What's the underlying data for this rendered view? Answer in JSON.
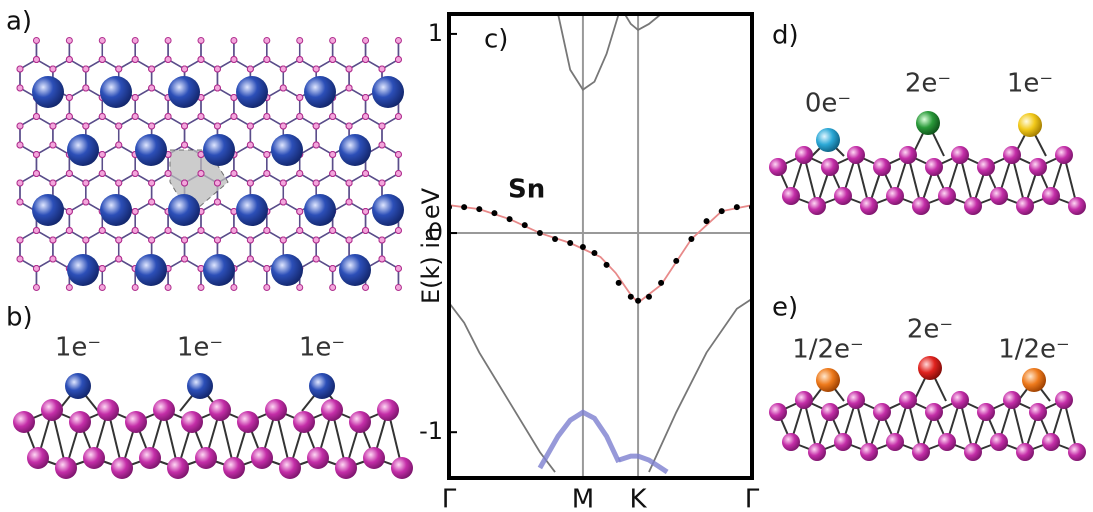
{
  "chart_data": {
    "type": "line",
    "panel_label": "c)",
    "y_label": "E(k) in eV",
    "xlim": [
      0,
      1
    ],
    "ylim": [
      -1.23,
      1.1
    ],
    "xticks": [
      {
        "value": 0,
        "label": "Γ"
      },
      {
        "value": 0.442,
        "label": "M"
      },
      {
        "value": 0.624,
        "label": "K"
      },
      {
        "value": 1,
        "label": "Γ"
      }
    ],
    "yticks": [
      1,
      0,
      -1
    ],
    "series": [
      {
        "color": "#e88a8a",
        "marker": "line",
        "x": [
          0,
          0.1,
          0.2,
          0.3,
          0.4,
          0.5,
          0.55,
          0.6,
          0.624,
          0.7,
          0.8,
          0.9,
          1.0
        ],
        "values": [
          0.14,
          0.12,
          0.07,
          0.0,
          -0.05,
          -0.12,
          -0.2,
          -0.31,
          -0.35,
          -0.26,
          -0.03,
          0.11,
          0.14
        ]
      },
      {
        "name": "Sn",
        "color": "#000000",
        "marker": "dots",
        "x": [
          0,
          0.05,
          0.1,
          0.15,
          0.2,
          0.25,
          0.3,
          0.35,
          0.4,
          0.442,
          0.48,
          0.52,
          0.56,
          0.6,
          0.624,
          0.66,
          0.7,
          0.75,
          0.8,
          0.85,
          0.9,
          0.95,
          1.0
        ],
        "values": [
          0.13,
          0.13,
          0.12,
          0.1,
          0.07,
          0.04,
          0.0,
          -0.03,
          -0.05,
          -0.07,
          -0.1,
          -0.16,
          -0.25,
          -0.32,
          -0.34,
          -0.32,
          -0.25,
          -0.14,
          -0.03,
          0.06,
          0.11,
          0.13,
          0.13
        ]
      },
      {
        "color": "#777777",
        "marker": "line",
        "x": [
          0.36,
          0.4,
          0.442,
          0.48,
          0.52,
          0.56
        ],
        "values": [
          1.1,
          0.82,
          0.72,
          0.76,
          0.9,
          1.1
        ]
      },
      {
        "color": "#777777",
        "marker": "line",
        "x": [
          0.58,
          0.6,
          0.624,
          0.66,
          0.7
        ],
        "values": [
          1.1,
          1.05,
          1.02,
          1.05,
          1.1
        ]
      },
      {
        "color": "#777777",
        "marker": "line",
        "x": [
          0,
          0.05,
          0.1,
          0.2,
          0.3,
          0.35
        ],
        "values": [
          -0.35,
          -0.45,
          -0.6,
          -0.85,
          -1.1,
          -1.2
        ]
      },
      {
        "color": "#777777",
        "marker": "line",
        "x": [
          0.66,
          0.75,
          0.85,
          0.95,
          1.0
        ],
        "values": [
          -1.2,
          -0.9,
          -0.6,
          -0.38,
          -0.33
        ]
      },
      {
        "color": "#7d80d0",
        "marker": "thick",
        "x": [
          0.3,
          0.36,
          0.4,
          0.442,
          0.48,
          0.52,
          0.56
        ],
        "values": [
          -1.18,
          -1.02,
          -0.94,
          -0.9,
          -0.93,
          -1.02,
          -1.15
        ]
      },
      {
        "color": "#7d80d0",
        "marker": "thick",
        "x": [
          0.56,
          0.6,
          0.624,
          0.66,
          0.72
        ],
        "values": [
          -1.14,
          -1.12,
          -1.12,
          -1.14,
          -1.2
        ]
      }
    ]
  },
  "panels": {
    "a": {
      "label": "a)"
    },
    "b": {
      "label": "b)",
      "charges": [
        "1e⁻",
        "1e⁻",
        "1e⁻"
      ]
    },
    "d": {
      "label": "d)",
      "charges": [
        "0e⁻",
        "2e⁻",
        "1e⁻"
      ]
    },
    "e": {
      "label": "e)",
      "charges": [
        "1/2e⁻",
        "2e⁻",
        "1/2e⁻"
      ]
    }
  }
}
